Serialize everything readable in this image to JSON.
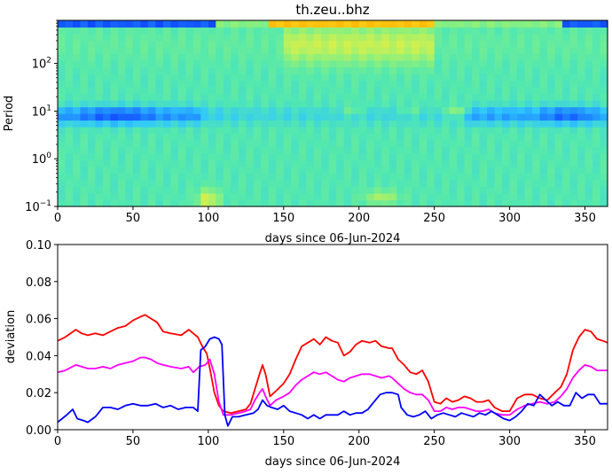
{
  "chart_data": [
    {
      "type": "heatmap",
      "title": "th.zeu..bhz",
      "xlabel": "days since 06-Jun-2024",
      "ylabel": "Period",
      "x_ticks": [
        "0",
        "50",
        "100",
        "150",
        "200",
        "250",
        "300",
        "350"
      ],
      "y_scale": "log",
      "y_ticks": [
        "10^-1",
        "10^0",
        "10^1",
        "10^2"
      ],
      "xlim": [
        0,
        365
      ],
      "ylim": [
        0.1,
        800
      ],
      "colormap": [
        "#0a2fff",
        "#1c7dff",
        "#2fc6ff",
        "#52e8b0",
        "#8ef07a",
        "#d7f04a",
        "#ffd21c",
        "#ffb000"
      ]
    },
    {
      "type": "line",
      "xlabel": "days since 06-Jun-2024",
      "ylabel": "deviation",
      "x_ticks": [
        "0",
        "50",
        "100",
        "150",
        "200",
        "250",
        "300",
        "350"
      ],
      "y_ticks": [
        "0.00",
        "0.02",
        "0.04",
        "0.06",
        "0.08",
        "0.10"
      ],
      "xlim": [
        0,
        365
      ],
      "ylim": [
        0,
        0.1
      ],
      "series": [
        {
          "color": "#ff0000",
          "points": [
            [
              0,
              0.048
            ],
            [
              5,
              0.05
            ],
            [
              12,
              0.054
            ],
            [
              16,
              0.052
            ],
            [
              20,
              0.051
            ],
            [
              25,
              0.052
            ],
            [
              30,
              0.051
            ],
            [
              35,
              0.053
            ],
            [
              40,
              0.055
            ],
            [
              45,
              0.056
            ],
            [
              50,
              0.059
            ],
            [
              55,
              0.061
            ],
            [
              58,
              0.062
            ],
            [
              62,
              0.06
            ],
            [
              66,
              0.058
            ],
            [
              70,
              0.053
            ],
            [
              75,
              0.052
            ],
            [
              82,
              0.051
            ],
            [
              87,
              0.054
            ],
            [
              90,
              0.052
            ],
            [
              93,
              0.05
            ],
            [
              96,
              0.045
            ],
            [
              99,
              0.041
            ],
            [
              101,
              0.033
            ],
            [
              104,
              0.02
            ],
            [
              107,
              0.013
            ],
            [
              110,
              0.01
            ],
            [
              115,
              0.009
            ],
            [
              120,
              0.01
            ],
            [
              125,
              0.011
            ],
            [
              128,
              0.014
            ],
            [
              131,
              0.022
            ],
            [
              134,
              0.03
            ],
            [
              136,
              0.035
            ],
            [
              138,
              0.03
            ],
            [
              141,
              0.018
            ],
            [
              145,
              0.021
            ],
            [
              150,
              0.025
            ],
            [
              154,
              0.03
            ],
            [
              158,
              0.038
            ],
            [
              162,
              0.045
            ],
            [
              166,
              0.047
            ],
            [
              170,
              0.049
            ],
            [
              174,
              0.046
            ],
            [
              178,
              0.05
            ],
            [
              182,
              0.048
            ],
            [
              186,
              0.047
            ],
            [
              190,
              0.04
            ],
            [
              194,
              0.042
            ],
            [
              198,
              0.046
            ],
            [
              202,
              0.048
            ],
            [
              207,
              0.047
            ],
            [
              211,
              0.048
            ],
            [
              215,
              0.045
            ],
            [
              220,
              0.044
            ],
            [
              222,
              0.044
            ],
            [
              226,
              0.038
            ],
            [
              230,
              0.035
            ],
            [
              234,
              0.031
            ],
            [
              238,
              0.03
            ],
            [
              242,
              0.032
            ],
            [
              246,
              0.026
            ],
            [
              250,
              0.015
            ],
            [
              254,
              0.014
            ],
            [
              258,
              0.017
            ],
            [
              262,
              0.015
            ],
            [
              266,
              0.016
            ],
            [
              270,
              0.018
            ],
            [
              274,
              0.017
            ],
            [
              278,
              0.015
            ],
            [
              282,
              0.015
            ],
            [
              286,
              0.016
            ],
            [
              290,
              0.012
            ],
            [
              295,
              0.01
            ],
            [
              300,
              0.01
            ],
            [
              305,
              0.017
            ],
            [
              310,
              0.019
            ],
            [
              315,
              0.019
            ],
            [
              320,
              0.017
            ],
            [
              325,
              0.016
            ],
            [
              330,
              0.02
            ],
            [
              334,
              0.023
            ],
            [
              338,
              0.03
            ],
            [
              342,
              0.043
            ],
            [
              346,
              0.05
            ],
            [
              350,
              0.054
            ],
            [
              354,
              0.053
            ],
            [
              358,
              0.049
            ],
            [
              362,
              0.048
            ],
            [
              365,
              0.047
            ]
          ]
        },
        {
          "color": "#ff00ff",
          "points": [
            [
              0,
              0.031
            ],
            [
              5,
              0.032
            ],
            [
              12,
              0.035
            ],
            [
              16,
              0.034
            ],
            [
              20,
              0.033
            ],
            [
              25,
              0.033
            ],
            [
              30,
              0.034
            ],
            [
              35,
              0.033
            ],
            [
              40,
              0.035
            ],
            [
              45,
              0.036
            ],
            [
              50,
              0.037
            ],
            [
              55,
              0.039
            ],
            [
              58,
              0.039
            ],
            [
              62,
              0.038
            ],
            [
              66,
              0.036
            ],
            [
              70,
              0.035
            ],
            [
              75,
              0.034
            ],
            [
              82,
              0.033
            ],
            [
              87,
              0.034
            ],
            [
              90,
              0.031
            ],
            [
              94,
              0.034
            ],
            [
              98,
              0.035
            ],
            [
              101,
              0.038
            ],
            [
              104,
              0.03
            ],
            [
              107,
              0.015
            ],
            [
              110,
              0.008
            ],
            [
              115,
              0.008
            ],
            [
              120,
              0.009
            ],
            [
              125,
              0.01
            ],
            [
              128,
              0.011
            ],
            [
              131,
              0.016
            ],
            [
              134,
              0.02
            ],
            [
              136,
              0.022
            ],
            [
              138,
              0.018
            ],
            [
              141,
              0.013
            ],
            [
              145,
              0.016
            ],
            [
              150,
              0.018
            ],
            [
              154,
              0.02
            ],
            [
              158,
              0.024
            ],
            [
              162,
              0.027
            ],
            [
              166,
              0.029
            ],
            [
              170,
              0.031
            ],
            [
              174,
              0.03
            ],
            [
              178,
              0.031
            ],
            [
              182,
              0.029
            ],
            [
              186,
              0.027
            ],
            [
              190,
              0.026
            ],
            [
              194,
              0.028
            ],
            [
              198,
              0.029
            ],
            [
              202,
              0.03
            ],
            [
              207,
              0.03
            ],
            [
              211,
              0.029
            ],
            [
              215,
              0.028
            ],
            [
              220,
              0.029
            ],
            [
              222,
              0.028
            ],
            [
              226,
              0.025
            ],
            [
              230,
              0.022
            ],
            [
              234,
              0.02
            ],
            [
              238,
              0.019
            ],
            [
              242,
              0.019
            ],
            [
              246,
              0.016
            ],
            [
              250,
              0.01
            ],
            [
              254,
              0.01
            ],
            [
              258,
              0.012
            ],
            [
              262,
              0.011
            ],
            [
              266,
              0.012
            ],
            [
              270,
              0.012
            ],
            [
              274,
              0.011
            ],
            [
              278,
              0.01
            ],
            [
              282,
              0.01
            ],
            [
              286,
              0.011
            ],
            [
              290,
              0.009
            ],
            [
              295,
              0.008
            ],
            [
              300,
              0.008
            ],
            [
              305,
              0.011
            ],
            [
              310,
              0.013
            ],
            [
              315,
              0.014
            ],
            [
              320,
              0.015
            ],
            [
              325,
              0.014
            ],
            [
              330,
              0.015
            ],
            [
              334,
              0.018
            ],
            [
              338,
              0.022
            ],
            [
              342,
              0.028
            ],
            [
              346,
              0.032
            ],
            [
              350,
              0.035
            ],
            [
              354,
              0.034
            ],
            [
              358,
              0.032
            ],
            [
              362,
              0.032
            ],
            [
              365,
              0.032
            ]
          ]
        },
        {
          "color": "#0000ff",
          "points": [
            [
              0,
              0.004
            ],
            [
              3,
              0.006
            ],
            [
              6,
              0.008
            ],
            [
              10,
              0.011
            ],
            [
              13,
              0.006
            ],
            [
              17,
              0.005
            ],
            [
              20,
              0.004
            ],
            [
              25,
              0.007
            ],
            [
              30,
              0.012
            ],
            [
              35,
              0.012
            ],
            [
              40,
              0.011
            ],
            [
              45,
              0.013
            ],
            [
              50,
              0.014
            ],
            [
              55,
              0.013
            ],
            [
              60,
              0.013
            ],
            [
              65,
              0.014
            ],
            [
              70,
              0.012
            ],
            [
              75,
              0.013
            ],
            [
              80,
              0.011
            ],
            [
              85,
              0.012
            ],
            [
              90,
              0.012
            ],
            [
              93,
              0.01
            ],
            [
              95,
              0.043
            ],
            [
              98,
              0.045
            ],
            [
              101,
              0.049
            ],
            [
              104,
              0.05
            ],
            [
              107,
              0.049
            ],
            [
              109,
              0.046
            ],
            [
              111,
              0.008
            ],
            [
              113,
              0.002
            ],
            [
              116,
              0.007
            ],
            [
              120,
              0.007
            ],
            [
              125,
              0.008
            ],
            [
              130,
              0.009
            ],
            [
              133,
              0.011
            ],
            [
              136,
              0.016
            ],
            [
              139,
              0.013
            ],
            [
              142,
              0.012
            ],
            [
              146,
              0.011
            ],
            [
              150,
              0.013
            ],
            [
              154,
              0.01
            ],
            [
              158,
              0.009
            ],
            [
              162,
              0.008
            ],
            [
              166,
              0.006
            ],
            [
              170,
              0.008
            ],
            [
              174,
              0.006
            ],
            [
              178,
              0.008
            ],
            [
              182,
              0.008
            ],
            [
              186,
              0.008
            ],
            [
              190,
              0.01
            ],
            [
              194,
              0.008
            ],
            [
              198,
              0.009
            ],
            [
              202,
              0.009
            ],
            [
              206,
              0.011
            ],
            [
              210,
              0.015
            ],
            [
              214,
              0.019
            ],
            [
              218,
              0.02
            ],
            [
              222,
              0.02
            ],
            [
              226,
              0.019
            ],
            [
              228,
              0.012
            ],
            [
              232,
              0.008
            ],
            [
              236,
              0.007
            ],
            [
              240,
              0.008
            ],
            [
              244,
              0.01
            ],
            [
              248,
              0.006
            ],
            [
              252,
              0.008
            ],
            [
              256,
              0.009
            ],
            [
              260,
              0.008
            ],
            [
              264,
              0.007
            ],
            [
              268,
              0.009
            ],
            [
              272,
              0.008
            ],
            [
              276,
              0.007
            ],
            [
              280,
              0.009
            ],
            [
              284,
              0.008
            ],
            [
              288,
              0.01
            ],
            [
              292,
              0.008
            ],
            [
              296,
              0.006
            ],
            [
              300,
              0.005
            ],
            [
              304,
              0.007
            ],
            [
              308,
              0.01
            ],
            [
              312,
              0.014
            ],
            [
              316,
              0.013
            ],
            [
              320,
              0.019
            ],
            [
              324,
              0.016
            ],
            [
              328,
              0.013
            ],
            [
              332,
              0.015
            ],
            [
              336,
              0.013
            ],
            [
              340,
              0.013
            ],
            [
              344,
              0.02
            ],
            [
              348,
              0.017
            ],
            [
              352,
              0.019
            ],
            [
              356,
              0.019
            ],
            [
              360,
              0.014
            ],
            [
              365,
              0.014
            ]
          ]
        }
      ]
    }
  ]
}
